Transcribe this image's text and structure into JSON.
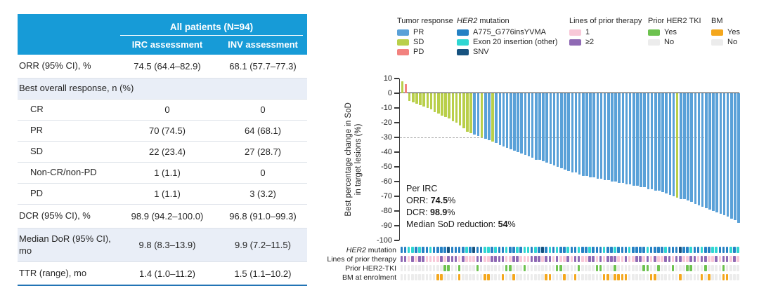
{
  "table": {
    "span_header": "All patients (N=94)",
    "col_irc": "IRC assessment",
    "col_inv": "INV assessment",
    "rows": [
      {
        "label": "ORR (95% CI), %",
        "irc": "74.5 (64.4–82.9)",
        "inv": "68.1 (57.7–77.3)",
        "style": "h34"
      },
      {
        "label": "Best overall response, n (%)",
        "irc": "",
        "inv": "",
        "style": "section shaded"
      },
      {
        "label": "CR",
        "irc": "0",
        "inv": "0",
        "style": "sub"
      },
      {
        "label": "PR",
        "irc": "70 (74.5)",
        "inv": "64 (68.1)",
        "style": "sub"
      },
      {
        "label": "SD",
        "irc": "22 (23.4)",
        "inv": "27 (28.7)",
        "style": "sub"
      },
      {
        "label": "Non-CR/non-PD",
        "irc": "1 (1.1)",
        "inv": "0",
        "style": "sub"
      },
      {
        "label": "PD",
        "irc": "1 (1.1)",
        "inv": "3 (3.2)",
        "style": "sub"
      },
      {
        "label": "DCR (95% CI), %",
        "irc": "98.9 (94.2–100.0)",
        "inv": "96.8 (91.0–99.3)",
        "style": "h34"
      },
      {
        "label": "Median DoR (95% CI), mo",
        "irc": "9.8 (8.3–13.9)",
        "inv": "9.9 (7.2–11.5)",
        "style": "shaded tall"
      },
      {
        "label": "TTR (range), mo",
        "irc": "1.4 (1.0–11.2)",
        "inv": "1.5 (1.1–10.2)",
        "style": "h34"
      }
    ]
  },
  "legend": {
    "groups": [
      {
        "title": "Tumor response",
        "title_italic": "",
        "items": [
          {
            "color": "#5aa1d8",
            "label": "PR"
          },
          {
            "color": "#b9cf4a",
            "label": "SD"
          },
          {
            "color": "#f2827f",
            "label": "PD"
          }
        ]
      },
      {
        "title": " mutation",
        "title_italic": "HER2",
        "items": [
          {
            "color": "#2581c4",
            "label": "A775_G776insYVMA"
          },
          {
            "color": "#2fd6d2",
            "label": "Exon 20 insertion (other)"
          },
          {
            "color": "#16527f",
            "label": "SNV"
          }
        ]
      },
      {
        "title": "Lines of prior therapy",
        "title_italic": "",
        "items": [
          {
            "color": "#f8c8d8",
            "label": "1"
          },
          {
            "color": "#8f69b4",
            "label": "≥2"
          }
        ]
      },
      {
        "title": "Prior HER2 TKI",
        "title_italic": "",
        "items": [
          {
            "color": "#6dc24f",
            "label": "Yes"
          },
          {
            "color": "#ececec",
            "label": "No"
          }
        ]
      },
      {
        "title": "BM",
        "title_italic": "",
        "items": [
          {
            "color": "#f4a71d",
            "label": "Yes"
          },
          {
            "color": "#ececec",
            "label": "No"
          }
        ]
      }
    ]
  },
  "chart_data": {
    "type": "bar",
    "subtype": "waterfall",
    "title": "Best percentage change in SoD in target lesions per patient (N=94), sorted descending",
    "xlabel": "",
    "ylabel_line1": "Best percentage change in SoD",
    "ylabel_line2": "in target lesions (%)",
    "ylim": [
      -100,
      10
    ],
    "yticks": [
      10,
      0,
      -10,
      -20,
      -30,
      -40,
      -50,
      -60,
      -70,
      -80,
      -90,
      -100
    ],
    "reference_line": -30,
    "legend_position": "top",
    "grid": false,
    "values": [
      8,
      6,
      -5,
      -6,
      -7,
      -8,
      -9,
      -10,
      -11,
      -13,
      -14,
      -15,
      -16,
      -17,
      -19,
      -20,
      -22,
      -24,
      -26,
      -27,
      -28,
      -29,
      -30,
      -31,
      -32,
      -33,
      -34,
      -35,
      -36,
      -37,
      -38,
      -39,
      -40,
      -41,
      -42,
      -43,
      -44,
      -45,
      -45,
      -46,
      -47,
      -48,
      -49,
      -50,
      -51,
      -52,
      -53,
      -54,
      -54,
      -55,
      -56,
      -56,
      -57,
      -57,
      -58,
      -58,
      -59,
      -59,
      -60,
      -60,
      -61,
      -61,
      -62,
      -62,
      -63,
      -63,
      -64,
      -64,
      -65,
      -65,
      -66,
      -66,
      -67,
      -68,
      -69,
      -70,
      -71,
      -72,
      -72,
      -73,
      -74,
      -75,
      -76,
      -77,
      -78,
      -79,
      -80,
      -81,
      -82,
      -83,
      -84,
      -85,
      -86,
      -88
    ],
    "response_tokens": "SPSSSSSSSSSSSSSSSSSSBBSBBSBBBBBBBBBBBBBBBBBBBBBBBBBBBBBBBBBBBBBBBBBBBBBBBBBBSBBBBBBBBBBBBBBBBB",
    "bar_colors": {
      "B": "#5aa1d8",
      "S": "#b9cf4a",
      "P": "#f2827f"
    },
    "bar_color_meaning": {
      "B": "PR",
      "S": "SD",
      "P": "PD"
    },
    "annotation": {
      "line1": "Per IRC",
      "line2_prefix": "ORR: ",
      "line2_bold": "74.5",
      "line2_suffix": "%",
      "line3_prefix": "DCR: ",
      "line3_bold": "98.9",
      "line3_suffix": "%",
      "line4_prefix": "Median SoD reduction: ",
      "line4_bold": "54",
      "line4_suffix": "%"
    }
  },
  "strips": [
    {
      "label_italic": "HER2",
      "label": " mutation",
      "pattern": "BBCCBCBBCBBBBNBBBBCBNBBCCBCBBCBBCBCCBCBNBCBCBBCBBCBBCBBBCBBCBBBCBBBBCBBBBCBBBNBBCBBCBBCCBBBCBC",
      "colors": {
        "B": "#2581c4",
        "C": "#2fd6d2",
        "N": "#16527f"
      }
    },
    {
      "label_italic": "",
      "label": "Lines of prior therapy",
      "pattern": "UUPUPUUPPPPUPUUUPUPPPUUPPUUUUPPUUPPPUUUPUUPUPPUPUUPPUUPUPUUUPPUPPUUPUPUPPUUPUUPPUUPUUPPUPUUPUP",
      "colors": {
        "P": "#f8c8d8",
        "U": "#8f69b4"
      }
    },
    {
      "label_italic": "",
      "label": "Prior HER2-TKI",
      "pattern": "NNNNNNNNNNNNYYNNYNNNNYNNNNNNNYYNNNYNNNNNNNNYYNNNNYNNNNYYNNNYNNNNNNNYYNNYNNNYNNNYYNNNYNNNNYNNNN",
      "colors": {
        "Y": "#6dc24f",
        "N": "#ececec"
      }
    },
    {
      "label_italic": "",
      "label": "BM at enrolment",
      "pattern": "NNNNNNNNNNYYNNNNYNNNNNNYYNNNYNNYNNNNNNNNYYNNNYNNYNNNNNNNYYNYYYYNNNNNNYYNNNNNNYNNNNNYNYNNNYYNNN",
      "colors": {
        "Y": "#f4a71d",
        "N": "#ececec"
      }
    }
  ]
}
